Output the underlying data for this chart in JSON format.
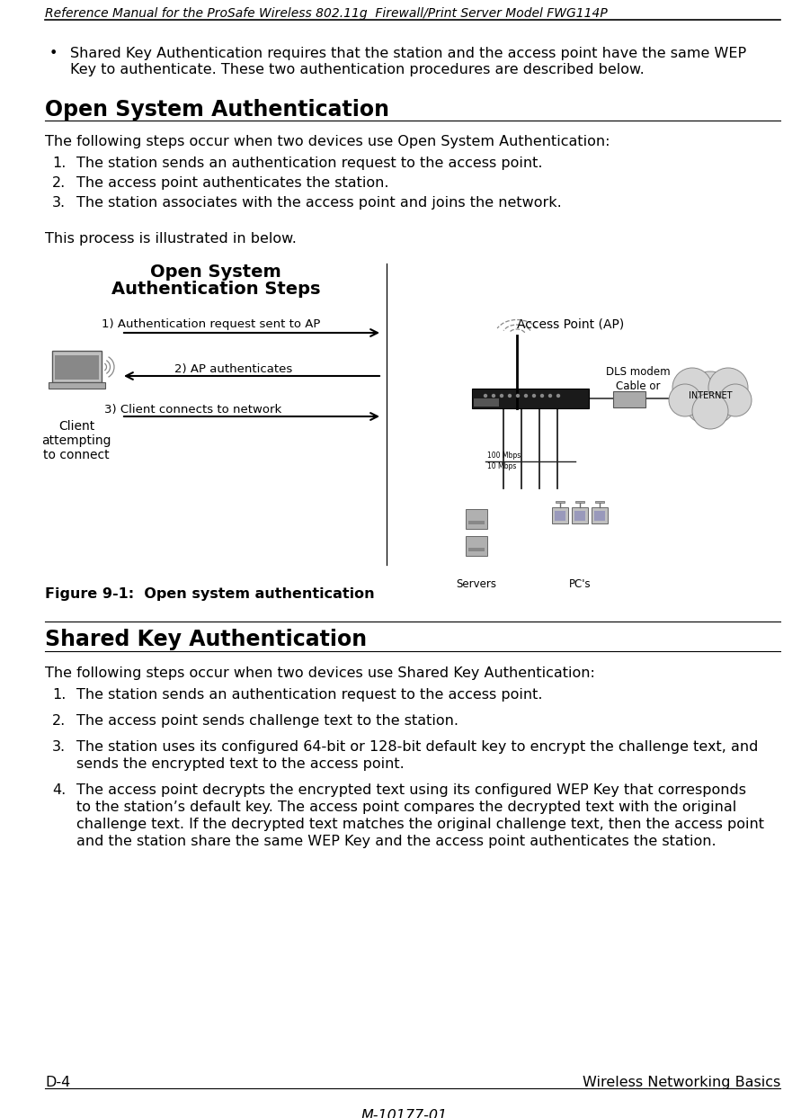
{
  "bg_color": "#ffffff",
  "header_text": "Reference Manual for the ProSafe Wireless 802.11g  Firewall/Print Server Model FWG114P",
  "bullet_text_line1": "Shared Key Authentication requires that the station and the access point have the same WEP",
  "bullet_text_line2": "Key to authenticate. These two authentication procedures are described below.",
  "section1_title": "Open System Authentication",
  "section1_intro": "The following steps occur when two devices use Open System Authentication:",
  "section1_steps": [
    "The station sends an authentication request to the access point.",
    "The access point authenticates the station.",
    "The station associates with the access point and joins the network."
  ],
  "section1_followup": "This process is illustrated in below.",
  "diagram_title_line1": "Open System",
  "diagram_title_line2": "Authentication Steps",
  "arrow1_label": "1) Authentication request sent to AP",
  "arrow2_label": "2) AP authenticates",
  "arrow3_label": "3) Client connects to network",
  "client_label_line1": "Client",
  "client_label_line2": "attempting",
  "client_label_line3": "to connect",
  "ap_label": "Access Point (AP)",
  "cable_label_line1": "Cable or",
  "cable_label_line2": "DLS modem",
  "internet_label": "INTERNET",
  "servers_label": "Servers",
  "pcs_label": "PC's",
  "figure_caption": "Figure 9-1:  Open system authentication",
  "section2_title": "Shared Key Authentication",
  "section2_intro": "The following steps occur when two devices use Shared Key Authentication:",
  "section2_steps": [
    "The station sends an authentication request to the access point.",
    "The access point sends challenge text to the station.",
    "The station uses its configured 64-bit or 128-bit default key to encrypt the challenge text, and\nsends the encrypted text to the access point.",
    "The access point decrypts the encrypted text using its configured WEP Key that corresponds\nto the station’s default key. The access point compares the decrypted text with the original\nchallenge text. If the decrypted text matches the original challenge text, then the access point\nand the station share the same WEP Key and the access point authenticates the station."
  ],
  "footer_left": "D-4",
  "footer_right": "Wireless Networking Basics",
  "footer_center": "M-10177-01",
  "text_color": "#000000",
  "ml": 50,
  "mr": 868,
  "body_fs": 11.5,
  "header_fs": 10.0,
  "section_title_fs": 17,
  "caption_fs": 11.5
}
